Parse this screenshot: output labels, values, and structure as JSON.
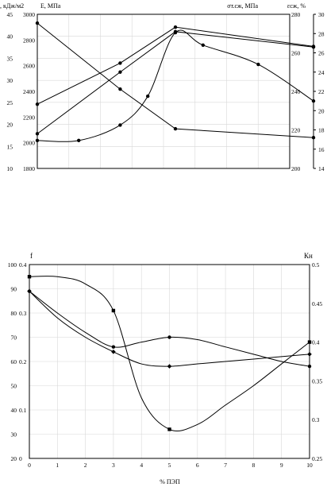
{
  "chart_data": [
    {
      "type": "line",
      "title": "",
      "axes": {
        "y1": {
          "label": ", кДж/м2",
          "ticks": [
            "10",
            "15",
            "20",
            "25",
            "30",
            "35",
            "40",
            "45"
          ],
          "range": [
            10,
            45
          ]
        },
        "y2": {
          "label": "E, МПа",
          "ticks": [
            "1800",
            "2000",
            "2200",
            "2400",
            "2600",
            "2800",
            "3000"
          ],
          "range": [
            1800,
            3000
          ]
        },
        "y3": {
          "label": "σт.сж, МПа",
          "ticks": [
            "200",
            "220",
            "240",
            "260",
            "280"
          ],
          "range": [
            200,
            280
          ]
        },
        "y4": {
          "label": "εсж, %",
          "ticks": [
            "14",
            "16",
            "18",
            "20",
            "22",
            "24",
            "26",
            "28",
            "30"
          ],
          "range": [
            14,
            30
          ]
        }
      },
      "x": {
        "range": [
          0,
          10
        ]
      },
      "grid": true,
      "series": [
        {
          "axis": "y1",
          "marker": "circle",
          "x": [
            0,
            3,
            5,
            10
          ],
          "y": [
            43,
            28,
            19,
            17
          ]
        },
        {
          "axis": "y2",
          "marker": "circle",
          "x": [
            0,
            3,
            5,
            10
          ],
          "y": [
            2300,
            2620,
            2900,
            2750
          ]
        },
        {
          "axis": "y3",
          "marker": "circle",
          "x": [
            0,
            3,
            5,
            10
          ],
          "y": [
            218,
            250,
            271,
            263
          ]
        },
        {
          "axis": "y4",
          "marker": "circle",
          "x": [
            0,
            1.5,
            3,
            4,
            5,
            6,
            8,
            10
          ],
          "y": [
            16.9,
            16.9,
            18.5,
            21.5,
            28.1,
            26.8,
            24.8,
            21.0
          ]
        }
      ]
    },
    {
      "type": "line",
      "title": "",
      "axes": {
        "y1": {
          "label": "",
          "ticks": [
            "20",
            "30",
            "40",
            "50",
            "60",
            "70",
            "80",
            "90",
            "100"
          ],
          "range": [
            20,
            100
          ]
        },
        "y2": {
          "label": "f",
          "ticks": [
            "0",
            "0.1",
            "0.2",
            "0.3",
            "0.4"
          ],
          "range": [
            0,
            0.4
          ]
        },
        "y3": {
          "label": "Кн",
          "ticks": [
            "0.25",
            "0.3",
            "0.35",
            "0.4",
            "0.45",
            "0.5"
          ],
          "range": [
            0.25,
            0.5
          ]
        }
      },
      "x": {
        "label": "% ПЭП",
        "ticks": [
          "0",
          "1",
          "2",
          "3",
          "4",
          "5",
          "6",
          "7",
          "8",
          "9",
          "10"
        ],
        "range": [
          0,
          10
        ]
      },
      "grid": true,
      "series": [
        {
          "axis": "y1",
          "marker": "square",
          "x": [
            0,
            1,
            2,
            3,
            4,
            5,
            6,
            7,
            8,
            9,
            10
          ],
          "y": [
            95,
            95,
            92,
            81,
            45,
            32,
            34,
            42,
            50,
            59,
            68
          ]
        },
        {
          "axis": "y1",
          "marker": "diamond",
          "x": [
            0,
            1,
            2,
            3,
            4,
            5,
            6,
            7,
            8,
            9,
            10
          ],
          "y": [
            89,
            78,
            70,
            64,
            59,
            58,
            59,
            60,
            61,
            62,
            63
          ]
        },
        {
          "axis": "y1",
          "marker": "circle",
          "x": [
            0,
            1,
            2,
            3,
            4,
            5,
            6,
            7,
            8,
            9,
            10
          ],
          "y": [
            89,
            80,
            72,
            66,
            68,
            70,
            69,
            66,
            63,
            60,
            58
          ]
        }
      ]
    }
  ]
}
